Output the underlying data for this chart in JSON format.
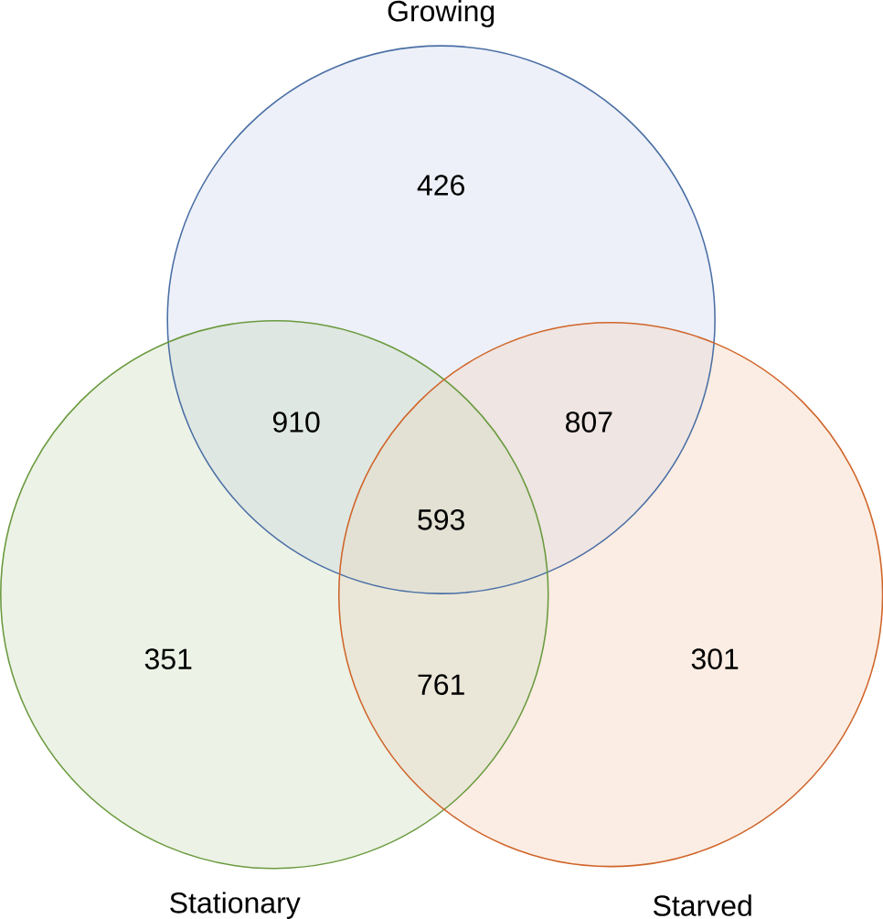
{
  "chart_data": {
    "type": "other",
    "categories": [
      null,
      null,
      null,
      null,
      null,
      null,
      null
    ],
    "values": [
      426,
      910,
      807,
      593,
      351,
      761,
      301
    ],
    "colors": [
      "#edf0f8",
      "#dfe7e2",
      "#efe5e2",
      "#e2e1d4",
      "#ecf2e5",
      "#eae7d8",
      "#fbede3"
    ],
    "data_labels": true,
    "annotations": [
      "Growing",
      "Stationary",
      "Starved"
    ]
  }
}
